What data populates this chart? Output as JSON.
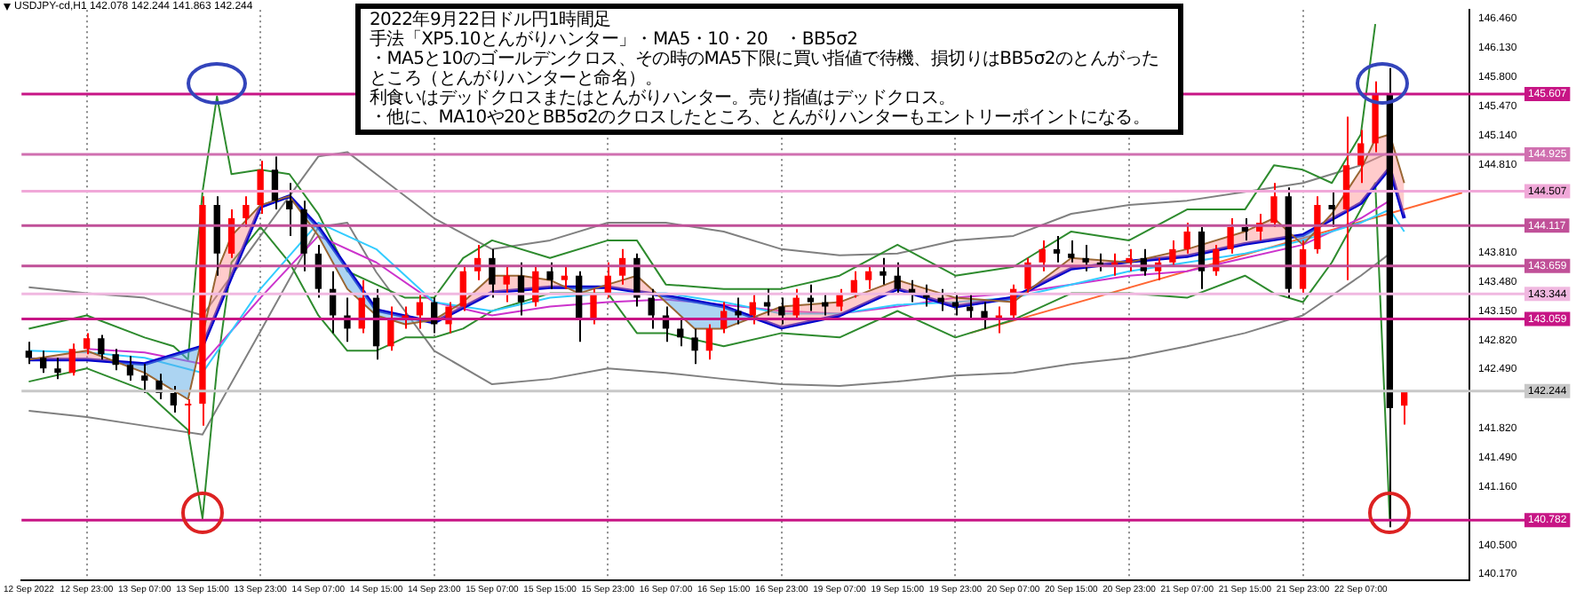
{
  "chart_data": {
    "type": "candlestick",
    "title": "2022年9月22日ドル円1時間足",
    "subtitle": "USDJPY-cd,H1 142.078 142.244 141.863 142.244",
    "annotations": [
      "手法「XP5.10とんがりハンター」・MA5・10・20　・BB5σ2",
      "・MA5と10のゴールデンクロス、その時のMA5下限に買い指値で待機、損切りはBB5σ2のとんがったところ（とんがりハンターと命名）。",
      "利食いはデッドクロスまたはとんがりハンター。売り指値はデッドクロス。",
      "・他に、MA10や20とBB5σ2のクロスしたところ、とんがりハンターもエントリーポイントになる。"
    ],
    "categories": [
      "12 Sep 2022",
      null,
      null,
      null,
      "12 Sep 23:00",
      null,
      null,
      null,
      "13 Sep 07:00",
      null,
      null,
      null,
      "13 Sep 15:00",
      null,
      null,
      null,
      "13 Sep 23:00",
      null,
      null,
      null,
      "14 Sep 07:00",
      null,
      null,
      null,
      "14 Sep 15:00",
      null,
      null,
      null,
      "14 Sep 23:00",
      null,
      null,
      null,
      "15 Sep 07:00",
      null,
      null,
      null,
      "15 Sep 15:00",
      null,
      null,
      null,
      "15 Sep 23:00",
      null,
      null,
      null,
      "16 Sep 07:00",
      null,
      null,
      null,
      "16 Sep 15:00",
      null,
      null,
      null,
      "16 Sep 23:00",
      null,
      null,
      null,
      "19 Sep 07:00",
      null,
      null,
      null,
      "19 Sep 15:00",
      null,
      null,
      null,
      "19 Sep 23:00",
      null,
      null,
      null,
      "20 Sep 07:00",
      null,
      null,
      null,
      "20 Sep 15:00",
      null,
      null,
      null,
      "20 Sep 23:00",
      null,
      null,
      null,
      "21 Sep 07:00",
      null,
      null,
      null,
      "21 Sep 15:00",
      null,
      null,
      null,
      "21 Sep 23:00",
      null,
      null,
      null,
      "22 Sep 07:00",
      null,
      null,
      null,
      null,
      null,
      null,
      null
    ],
    "ohlc": [
      [
        142.7,
        142.8,
        142.55,
        142.62
      ],
      [
        142.62,
        142.7,
        142.45,
        142.5
      ],
      [
        142.5,
        142.62,
        142.38,
        142.45
      ],
      [
        142.45,
        142.78,
        142.42,
        142.72
      ],
      [
        142.72,
        142.9,
        142.66,
        142.84
      ],
      [
        142.84,
        142.88,
        142.6,
        142.66
      ],
      [
        142.66,
        142.72,
        142.48,
        142.54
      ],
      [
        142.54,
        142.64,
        142.36,
        142.42
      ],
      [
        142.42,
        142.55,
        142.22,
        142.36
      ],
      [
        142.36,
        142.44,
        142.15,
        142.22
      ],
      [
        142.22,
        142.3,
        142.0,
        142.08
      ],
      [
        142.08,
        142.15,
        141.75,
        142.1
      ],
      [
        142.1,
        144.45,
        141.85,
        144.35
      ],
      [
        144.35,
        144.45,
        143.55,
        143.8
      ],
      [
        143.8,
        144.3,
        143.75,
        144.2
      ],
      [
        144.2,
        144.45,
        144.1,
        144.35
      ],
      [
        144.35,
        144.85,
        144.25,
        144.75
      ],
      [
        144.75,
        144.9,
        144.3,
        144.4
      ],
      [
        144.4,
        144.6,
        144.0,
        144.3
      ],
      [
        144.3,
        144.4,
        143.6,
        143.8
      ],
      [
        143.8,
        143.9,
        143.3,
        143.4
      ],
      [
        143.4,
        143.6,
        142.9,
        143.1
      ],
      [
        143.1,
        143.3,
        142.8,
        142.95
      ],
      [
        142.95,
        143.5,
        142.9,
        143.3
      ],
      [
        143.3,
        143.4,
        142.6,
        142.75
      ],
      [
        142.75,
        143.2,
        142.7,
        143.05
      ],
      [
        143.05,
        143.2,
        142.95,
        143.1
      ],
      [
        143.1,
        143.35,
        142.95,
        143.25
      ],
      [
        143.25,
        143.3,
        142.9,
        143.0
      ],
      [
        143.0,
        143.25,
        142.9,
        143.2
      ],
      [
        143.2,
        143.65,
        143.15,
        143.6
      ],
      [
        143.6,
        143.9,
        143.5,
        143.75
      ],
      [
        143.75,
        143.85,
        143.3,
        143.45
      ],
      [
        143.45,
        143.65,
        143.25,
        143.55
      ],
      [
        143.55,
        143.7,
        143.1,
        143.25
      ],
      [
        143.25,
        143.65,
        143.2,
        143.6
      ],
      [
        143.6,
        143.7,
        143.4,
        143.5
      ],
      [
        143.5,
        143.65,
        143.4,
        143.55
      ],
      [
        143.55,
        143.6,
        142.8,
        143.05
      ],
      [
        143.05,
        143.4,
        143.0,
        143.35
      ],
      [
        143.35,
        143.7,
        143.3,
        143.55
      ],
      [
        143.55,
        143.85,
        143.45,
        143.75
      ],
      [
        143.75,
        143.8,
        143.2,
        143.3
      ],
      [
        143.3,
        143.4,
        142.95,
        143.1
      ],
      [
        143.1,
        143.2,
        142.8,
        142.95
      ],
      [
        142.95,
        143.05,
        142.75,
        142.85
      ],
      [
        142.85,
        142.95,
        142.55,
        142.7
      ],
      [
        142.7,
        143.0,
        142.6,
        142.95
      ],
      [
        142.95,
        143.25,
        142.9,
        143.15
      ],
      [
        143.15,
        143.3,
        143.0,
        143.1
      ],
      [
        143.1,
        143.35,
        143.0,
        143.25
      ],
      [
        143.25,
        143.4,
        143.1,
        143.2
      ],
      [
        143.2,
        143.3,
        143.0,
        143.1
      ],
      [
        143.1,
        143.4,
        143.05,
        143.3
      ],
      [
        143.3,
        143.45,
        143.15,
        143.25
      ],
      [
        143.25,
        143.35,
        143.1,
        143.2
      ],
      [
        143.2,
        143.4,
        143.15,
        143.35
      ],
      [
        143.35,
        143.6,
        143.3,
        143.5
      ],
      [
        143.5,
        143.65,
        143.4,
        143.6
      ],
      [
        143.6,
        143.75,
        143.45,
        143.55
      ],
      [
        143.55,
        143.7,
        143.35,
        143.4
      ],
      [
        143.4,
        143.5,
        143.25,
        143.35
      ],
      [
        143.35,
        143.45,
        143.2,
        143.3
      ],
      [
        143.3,
        143.4,
        143.15,
        143.25
      ],
      [
        143.25,
        143.35,
        143.1,
        143.2
      ],
      [
        143.2,
        143.35,
        143.05,
        143.15
      ],
      [
        143.15,
        143.25,
        142.95,
        143.05
      ],
      [
        143.05,
        143.2,
        142.9,
        143.1
      ],
      [
        143.1,
        143.45,
        143.05,
        143.4
      ],
      [
        143.4,
        143.75,
        143.35,
        143.7
      ],
      [
        143.7,
        143.95,
        143.6,
        143.85
      ],
      [
        143.85,
        144.0,
        143.7,
        143.8
      ],
      [
        143.8,
        143.95,
        143.7,
        143.75
      ],
      [
        143.75,
        143.9,
        143.6,
        143.7
      ],
      [
        143.7,
        143.8,
        143.6,
        143.65
      ],
      [
        143.65,
        143.8,
        143.55,
        143.7
      ],
      [
        143.7,
        143.85,
        143.6,
        143.75
      ],
      [
        143.75,
        143.85,
        143.55,
        143.6
      ],
      [
        143.6,
        143.75,
        143.5,
        143.7
      ],
      [
        143.7,
        143.95,
        143.65,
        143.85
      ],
      [
        143.85,
        144.15,
        143.8,
        144.05
      ],
      [
        144.05,
        144.1,
        143.4,
        143.6
      ],
      [
        143.6,
        143.9,
        143.55,
        143.85
      ],
      [
        143.85,
        144.2,
        143.8,
        144.1
      ],
      [
        144.1,
        144.2,
        143.95,
        144.05
      ],
      [
        144.05,
        144.25,
        143.95,
        144.15
      ],
      [
        144.15,
        144.6,
        144.1,
        144.45
      ],
      [
        144.45,
        144.55,
        143.3,
        143.4
      ],
      [
        143.4,
        143.95,
        143.35,
        143.85
      ],
      [
        143.85,
        144.45,
        143.8,
        144.35
      ],
      [
        144.35,
        144.5,
        144.1,
        144.3
      ],
      [
        144.3,
        145.35,
        143.5,
        144.8
      ],
      [
        144.8,
        145.2,
        144.6,
        145.05
      ],
      [
        145.05,
        145.75,
        144.95,
        145.6
      ],
      [
        145.6,
        145.9,
        140.7,
        142.05
      ],
      [
        142.078,
        142.244,
        141.863,
        142.244
      ],
      null,
      null,
      null,
      null
    ],
    "colors": [
      "#000000",
      "#000000",
      "#000000",
      "#ff0000",
      "#ff0000",
      "#000000",
      "#000000",
      "#000000",
      "#000000",
      "#000000",
      "#000000",
      "#ff0000",
      "#ff0000",
      "#000000",
      "#ff0000",
      "#ff0000",
      "#ff0000",
      "#000000",
      "#000000",
      "#000000",
      "#000000",
      "#000000",
      "#000000",
      "#ff0000",
      "#000000",
      "#ff0000",
      "#ff0000",
      "#ff0000",
      "#000000",
      "#ff0000",
      "#ff0000",
      "#ff0000",
      "#000000",
      "#ff0000",
      "#000000",
      "#ff0000",
      "#000000",
      "#ff0000",
      "#000000",
      "#ff0000",
      "#ff0000",
      "#ff0000",
      "#000000",
      "#000000",
      "#000000",
      "#000000",
      "#000000",
      "#ff0000",
      "#ff0000",
      "#000000",
      "#ff0000",
      "#000000",
      "#000000",
      "#ff0000",
      "#000000",
      "#000000",
      "#ff0000",
      "#ff0000",
      "#ff0000",
      "#000000",
      "#000000",
      "#000000",
      "#000000",
      "#000000",
      "#000000",
      "#000000",
      "#000000",
      "#ff0000",
      "#ff0000",
      "#ff0000",
      "#ff0000",
      "#000000",
      "#000000",
      "#000000",
      "#000000",
      "#ff0000",
      "#ff0000",
      "#000000",
      "#ff0000",
      "#ff0000",
      "#ff0000",
      "#000000",
      "#ff0000",
      "#ff0000",
      "#000000",
      "#ff0000",
      "#ff0000",
      "#000000",
      "#ff0000",
      "#ff0000",
      "#000000",
      "#ff0000",
      "#ff0000",
      "#ff0000",
      "#000000",
      "#ff0000",
      null,
      null,
      null,
      null
    ],
    "series": [
      {
        "type": "line",
        "color": "#996633",
        "values": [
          142.6,
          null,
          null,
          null,
          142.7,
          null,
          null,
          null,
          142.45,
          null,
          142.25,
          142.15,
          null,
          143.6,
          144.0,
          null,
          144.35,
          null,
          144.45,
          null,
          144.0,
          null,
          143.4,
          null,
          143.1,
          null,
          143.0,
          null,
          143.05,
          null,
          143.25,
          null,
          143.55,
          null,
          143.55,
          null,
          143.5,
          null,
          143.35,
          null,
          143.45,
          null,
          143.55,
          null,
          143.25,
          null,
          142.95,
          null,
          142.95,
          null,
          null,
          null,
          143.2,
          null,
          null,
          null,
          143.25,
          null,
          null,
          null,
          143.5,
          null,
          null,
          null,
          143.3,
          null,
          null,
          null,
          143.25,
          null,
          null,
          null,
          143.75,
          null,
          null,
          null,
          143.7,
          null,
          null,
          null,
          143.85,
          null,
          null,
          null,
          144.05,
          null,
          144.2,
          null,
          143.9,
          null,
          144.25,
          null,
          144.75,
          145.1,
          145.15,
          144.6,
          null,
          null,
          null,
          null
        ]
      },
      {
        "type": "line",
        "color": "#0000cc",
        "values": [
          142.6,
          null,
          null,
          null,
          142.6,
          null,
          null,
          null,
          142.55,
          null,
          null,
          null,
          142.75,
          null,
          null,
          null,
          144.33,
          null,
          144.45,
          null,
          144.1,
          null,
          null,
          null,
          143.16,
          null,
          null,
          null,
          143.02,
          null,
          null,
          null,
          143.36,
          null,
          null,
          null,
          143.42,
          null,
          null,
          null,
          143.42,
          null,
          null,
          null,
          143.32,
          null,
          null,
          null,
          143.2,
          null,
          null,
          null,
          142.96,
          null,
          null,
          null,
          143.1,
          null,
          null,
          null,
          143.4,
          null,
          null,
          null,
          143.2,
          null,
          null,
          null,
          143.3,
          null,
          null,
          null,
          143.63,
          null,
          null,
          null,
          143.71,
          null,
          null,
          null,
          143.77,
          null,
          null,
          null,
          143.91,
          null,
          null,
          null,
          144.01,
          null,
          null,
          null,
          144.37,
          null,
          144.77,
          144.2,
          null,
          null,
          null,
          null
        ]
      },
      {
        "type": "line",
        "color": "#33ccff",
        "values": [
          142.7,
          null,
          null,
          null,
          142.68,
          null,
          null,
          null,
          142.62,
          null,
          null,
          null,
          142.45,
          null,
          null,
          null,
          143.4,
          null,
          null,
          null,
          144.15,
          null,
          null,
          null,
          143.85,
          null,
          null,
          null,
          143.25,
          null,
          null,
          null,
          143.15,
          null,
          null,
          null,
          143.3,
          null,
          null,
          null,
          143.35,
          null,
          null,
          null,
          143.35,
          null,
          null,
          null,
          143.25,
          null,
          null,
          null,
          143.12,
          null,
          null,
          null,
          143.12,
          null,
          null,
          null,
          143.22,
          null,
          null,
          null,
          143.25,
          null,
          null,
          null,
          143.3,
          null,
          null,
          null,
          143.45,
          null,
          null,
          null,
          143.6,
          null,
          null,
          null,
          143.7,
          null,
          null,
          null,
          143.8,
          null,
          null,
          null,
          143.95,
          null,
          null,
          null,
          144.15,
          null,
          144.3,
          144.05,
          null,
          null,
          null,
          null
        ]
      },
      {
        "type": "line",
        "color": "#cc33cc",
        "values": [
          null,
          null,
          null,
          null,
          142.72,
          null,
          null,
          null,
          142.68,
          null,
          null,
          null,
          142.55,
          null,
          null,
          null,
          143.3,
          null,
          null,
          null,
          144.0,
          null,
          null,
          null,
          143.7,
          null,
          null,
          null,
          143.25,
          null,
          null,
          null,
          143.1,
          null,
          null,
          null,
          143.2,
          null,
          null,
          null,
          143.25,
          null,
          null,
          null,
          143.28,
          null,
          null,
          null,
          143.22,
          null,
          null,
          null,
          143.15,
          null,
          null,
          null,
          143.12,
          null,
          null,
          null,
          143.2,
          null,
          null,
          null,
          143.3,
          null,
          null,
          null,
          143.35,
          null,
          null,
          null,
          143.45,
          null,
          null,
          null,
          143.55,
          null,
          null,
          null,
          143.6,
          null,
          null,
          null,
          143.75,
          null,
          null,
          null,
          143.9,
          null,
          null,
          null,
          144.2,
          null,
          144.4,
          null,
          null,
          null,
          null,
          null
        ]
      },
      {
        "type": "line",
        "color": "#2e8b2e",
        "values": [
          142.95,
          null,
          null,
          null,
          143.1,
          null,
          null,
          null,
          142.85,
          null,
          142.75,
          142.6,
          144.5,
          145.58,
          144.7,
          null,
          144.75,
          null,
          144.7,
          null,
          144.25,
          null,
          143.6,
          null,
          143.45,
          null,
          143.3,
          null,
          143.3,
          null,
          143.75,
          null,
          143.95,
          null,
          null,
          null,
          143.75,
          null,
          null,
          null,
          143.95,
          null,
          143.95,
          null,
          143.45,
          null,
          null,
          null,
          143.4,
          null,
          null,
          null,
          143.4,
          null,
          null,
          null,
          143.55,
          null,
          null,
          null,
          143.9,
          null,
          null,
          null,
          143.55,
          null,
          null,
          null,
          143.65,
          null,
          null,
          null,
          144.05,
          null,
          null,
          null,
          143.95,
          null,
          null,
          null,
          144.3,
          null,
          null,
          null,
          144.3,
          null,
          144.8,
          null,
          144.75,
          null,
          144.6,
          null,
          145.15,
          146.4,
          null,
          null,
          null,
          null,
          null,
          null
        ]
      },
      {
        "type": "line",
        "color": "#2e8b2e",
        "values": [
          142.35,
          null,
          null,
          null,
          142.5,
          null,
          null,
          null,
          142.25,
          null,
          141.95,
          141.8,
          140.8,
          142.5,
          143.7,
          null,
          144.1,
          null,
          143.7,
          null,
          143.1,
          null,
          142.7,
          null,
          142.7,
          null,
          142.85,
          null,
          142.85,
          null,
          142.95,
          null,
          143.15,
          null,
          null,
          null,
          143.35,
          null,
          null,
          null,
          143.35,
          null,
          142.9,
          null,
          142.9,
          null,
          null,
          null,
          142.75,
          null,
          null,
          null,
          142.9,
          null,
          null,
          null,
          142.85,
          null,
          null,
          null,
          143.15,
          null,
          null,
          null,
          142.85,
          null,
          null,
          null,
          143.05,
          null,
          null,
          null,
          143.35,
          null,
          null,
          null,
          143.35,
          null,
          null,
          null,
          143.3,
          null,
          null,
          null,
          143.55,
          null,
          143.35,
          null,
          143.25,
          null,
          143.7,
          null,
          144.3,
          144.6,
          140.78,
          null,
          null,
          null,
          null,
          null
        ]
      },
      {
        "type": "line",
        "color": "#808080",
        "values": [
          143.42,
          null,
          null,
          null,
          143.35,
          null,
          null,
          null,
          143.3,
          null,
          null,
          null,
          143.1,
          null,
          null,
          null,
          144.0,
          null,
          null,
          null,
          144.9,
          null,
          144.95,
          null,
          144.7,
          null,
          null,
          null,
          144.2,
          null,
          null,
          null,
          143.85,
          null,
          null,
          null,
          143.95,
          null,
          null,
          null,
          144.15,
          null,
          null,
          null,
          144.15,
          null,
          null,
          null,
          144.05,
          null,
          null,
          null,
          143.85,
          null,
          null,
          null,
          143.78,
          null,
          null,
          null,
          143.8,
          null,
          null,
          null,
          143.95,
          null,
          null,
          null,
          144.0,
          null,
          null,
          null,
          144.25,
          null,
          null,
          null,
          144.35,
          null,
          null,
          null,
          144.4,
          null,
          null,
          null,
          144.5,
          null,
          null,
          null,
          144.6,
          null,
          null,
          null,
          144.8,
          null,
          144.95,
          null,
          null,
          null,
          null,
          null
        ]
      },
      {
        "type": "line",
        "color": "#808080",
        "values": [
          142.02,
          null,
          null,
          null,
          141.95,
          null,
          null,
          null,
          141.85,
          null,
          null,
          null,
          141.75,
          null,
          null,
          null,
          142.92,
          null,
          null,
          null,
          144.1,
          null,
          144.15,
          null,
          143.59,
          null,
          null,
          null,
          142.7,
          null,
          null,
          null,
          142.32,
          null,
          null,
          null,
          142.38,
          null,
          null,
          null,
          142.5,
          null,
          null,
          null,
          142.45,
          null,
          null,
          null,
          142.38,
          null,
          null,
          null,
          142.32,
          null,
          null,
          null,
          142.3,
          null,
          null,
          null,
          142.35,
          null,
          null,
          null,
          142.42,
          null,
          null,
          null,
          142.45,
          null,
          null,
          null,
          142.55,
          null,
          null,
          null,
          142.62,
          null,
          null,
          null,
          142.75,
          null,
          null,
          null,
          142.9,
          null,
          null,
          null,
          143.1,
          null,
          null,
          null,
          143.55,
          null,
          143.8,
          null,
          null,
          null,
          null,
          null
        ]
      },
      {
        "type": "line",
        "color": "#ff6633",
        "values": [
          null,
          null,
          null,
          null,
          null,
          null,
          null,
          null,
          null,
          null,
          null,
          null,
          null,
          null,
          null,
          null,
          null,
          null,
          null,
          null,
          null,
          null,
          null,
          null,
          null,
          null,
          null,
          null,
          null,
          null,
          null,
          null,
          null,
          null,
          null,
          null,
          null,
          null,
          null,
          null,
          null,
          null,
          null,
          null,
          null,
          null,
          null,
          null,
          null,
          null,
          null,
          null,
          null,
          null,
          null,
          null,
          null,
          null,
          null,
          null,
          null,
          null,
          null,
          null,
          null,
          142.9,
          null,
          null,
          null,
          null,
          null,
          null,
          null,
          null,
          null,
          null,
          null,
          null,
          null,
          null,
          null,
          null,
          null,
          null,
          null,
          null,
          null,
          null,
          null,
          null,
          null,
          null,
          null,
          null,
          null,
          null,
          null,
          null,
          null,
          144.49
        ]
      }
    ],
    "marker": "none",
    "ylim": [
      140.1,
      146.56
    ],
    "yticks": [
      {
        "value": 146.46,
        "label": "146.460"
      },
      {
        "value": 146.13,
        "label": "146.130"
      },
      {
        "value": 145.8,
        "label": "145.800"
      },
      {
        "value": 145.47,
        "label": "145.470"
      },
      {
        "value": 145.14,
        "label": "145.140"
      },
      {
        "value": 144.81,
        "label": "144.810"
      },
      {
        "value": 143.81,
        "label": "143.810"
      },
      {
        "value": 143.48,
        "label": "143.480"
      },
      {
        "value": 143.15,
        "label": "143.150"
      },
      {
        "value": 142.82,
        "label": "142.820"
      },
      {
        "value": 142.49,
        "label": "142.490"
      },
      {
        "value": 141.82,
        "label": "141.820"
      },
      {
        "value": 141.49,
        "label": "141.490"
      },
      {
        "value": 141.16,
        "label": "141.160"
      },
      {
        "value": 140.5,
        "label": "140.500"
      },
      {
        "value": 140.17,
        "label": "140.170"
      }
    ],
    "grid": "x",
    "ref_lines": [
      {
        "axis": "y",
        "value": 145.607,
        "label": "145.607",
        "color": "#c71585"
      },
      {
        "axis": "y",
        "value": 144.925,
        "label": "144.925",
        "color": "#d070b0"
      },
      {
        "axis": "y",
        "value": 144.507,
        "label": "144.507",
        "color": "#f0a8d8"
      },
      {
        "axis": "y",
        "value": 144.117,
        "label": "144.117",
        "color": "#c05098"
      },
      {
        "axis": "y",
        "value": 143.659,
        "label": "143.659",
        "color": "#c05098"
      },
      {
        "axis": "y",
        "value": 143.344,
        "label": "143.344",
        "color": "#f0b8e0"
      },
      {
        "axis": "y",
        "value": 143.059,
        "label": "143.059",
        "color": "#c71585"
      },
      {
        "axis": "y",
        "value": 142.244,
        "label": "142.244",
        "color": "#c8c8c8"
      },
      {
        "axis": "y",
        "value": 140.782,
        "label": "140.782",
        "color": "#c71585"
      }
    ]
  }
}
